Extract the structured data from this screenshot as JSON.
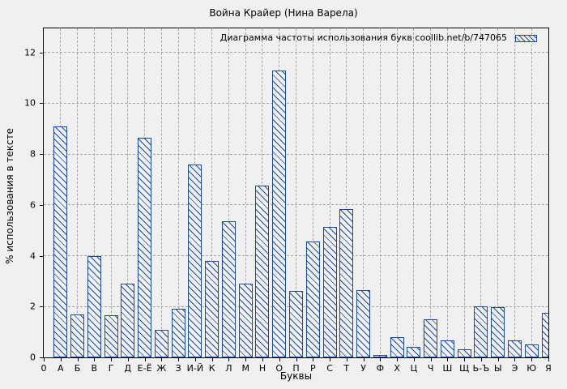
{
  "title": "Война Крайер (Нина Варела)",
  "legend": {
    "label": "Диаграмма частоты использования букв coollib.net/b/747065"
  },
  "chart_data": {
    "type": "bar",
    "title": "Война Крайер (Нина Варела)",
    "legend": "Диаграмма частоты использования букв coollib.net/b/747065",
    "legend_position": "top-right-inside",
    "xlabel": "Буквы",
    "ylabel": "% использования в тексте",
    "origin_tick_label": "0",
    "categories": [
      "А",
      "Б",
      "В",
      "Г",
      "Д",
      "Е-Ё",
      "Ж",
      "З",
      "И-Й",
      "К",
      "Л",
      "М",
      "Н",
      "О",
      "П",
      "Р",
      "С",
      "Т",
      "У",
      "Ф",
      "Х",
      "Ц",
      "Ч",
      "Ш",
      "Щ",
      "Ь-Ъ",
      "Ы",
      "Э",
      "Ю",
      "Я"
    ],
    "values": [
      9.1,
      1.7,
      4.0,
      1.65,
      2.9,
      8.65,
      1.1,
      1.9,
      7.6,
      3.78,
      5.35,
      2.9,
      6.75,
      11.28,
      2.6,
      4.55,
      5.12,
      5.85,
      2.65,
      0.1,
      0.8,
      0.42,
      1.5,
      0.68,
      0.32,
      2.0,
      1.98,
      0.66,
      0.5,
      1.76
    ],
    "yticks": [
      0,
      2,
      4,
      6,
      8,
      10,
      12
    ],
    "ylim": [
      0,
      12.95
    ],
    "grid": true,
    "grid_style": "dashed",
    "bar_fill": "diagonal-hatch",
    "colors": {
      "accent": "#1b4ba0",
      "background": "#f0f0f0",
      "grid": "#a6a6a6",
      "text": "#000000",
      "border": "#000000"
    }
  }
}
